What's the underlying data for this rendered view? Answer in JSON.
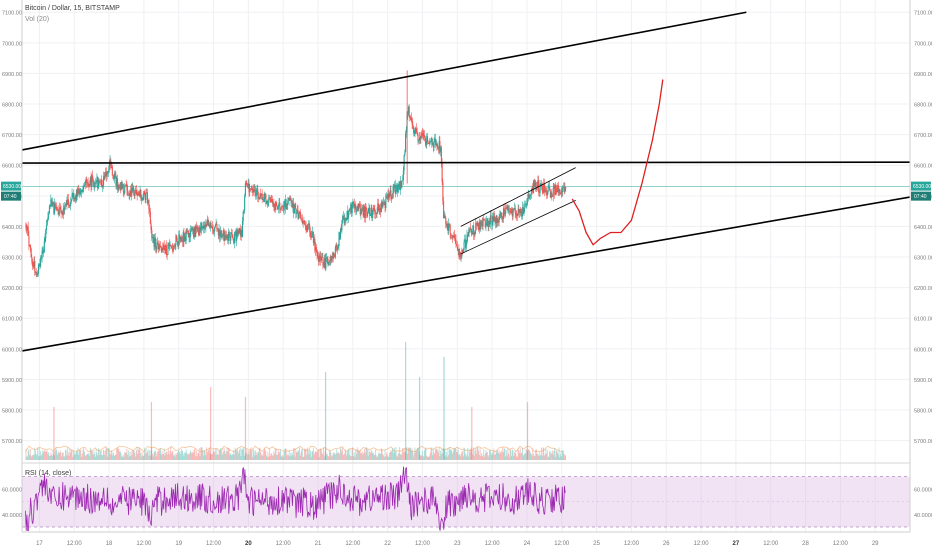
{
  "header": {
    "title": "Bitcoin / Dollar, 15, BITSTAMP",
    "volume_label": "Vol (20)"
  },
  "rsi_label": "RSI (14, close)",
  "current_price_badge": "6530.00",
  "countdown_badge": "07:40",
  "colors": {
    "up": "#26a69a",
    "down": "#ef5350",
    "trendline": "#000000",
    "projection": "#e02020",
    "rsi_line": "#9c27b0",
    "rsi_band": "#e1bee7",
    "price_line": "#26a69a"
  },
  "chart_data": {
    "type": "candlestick",
    "symbol": "Bitcoin / Dollar",
    "interval": "15",
    "exchange": "BITSTAMP",
    "current_price": 6530.0,
    "ylim": [
      5630,
      7140
    ],
    "y_ticks": [
      "7100.00",
      "7000.00",
      "6900.00",
      "6800.00",
      "6700.00",
      "6600.00",
      "6500.00",
      "6400.00",
      "6300.00",
      "6200.00",
      "6100.00",
      "6000.00",
      "5900.00",
      "5800.00",
      "5700.00"
    ],
    "x_ticks": [
      "17",
      "12:00",
      "18",
      "12:00",
      "19",
      "12:00",
      "20",
      "12:00",
      "21",
      "12:00",
      "22",
      "12:00",
      "23",
      "12:00",
      "24",
      "12:00",
      "25",
      "12:00",
      "26",
      "12:00",
      "27",
      "12:00",
      "28",
      "12:00",
      "29"
    ],
    "x_domain": [
      16.75,
      29.5
    ],
    "price_path": [
      [
        16.8,
        6410
      ],
      [
        16.88,
        6300
      ],
      [
        16.95,
        6240
      ],
      [
        17.05,
        6330
      ],
      [
        17.15,
        6470
      ],
      [
        17.3,
        6440
      ],
      [
        17.5,
        6500
      ],
      [
        17.7,
        6550
      ],
      [
        17.9,
        6540
      ],
      [
        18.0,
        6610
      ],
      [
        18.1,
        6540
      ],
      [
        18.25,
        6520
      ],
      [
        18.4,
        6510
      ],
      [
        18.55,
        6490
      ],
      [
        18.62,
        6350
      ],
      [
        18.8,
        6320
      ],
      [
        19.0,
        6360
      ],
      [
        19.2,
        6380
      ],
      [
        19.4,
        6410
      ],
      [
        19.6,
        6380
      ],
      [
        19.75,
        6360
      ],
      [
        19.9,
        6380
      ],
      [
        19.95,
        6540
      ],
      [
        20.1,
        6510
      ],
      [
        20.3,
        6480
      ],
      [
        20.45,
        6460
      ],
      [
        20.6,
        6480
      ],
      [
        20.75,
        6420
      ],
      [
        20.9,
        6380
      ],
      [
        21.0,
        6290
      ],
      [
        21.1,
        6280
      ],
      [
        21.25,
        6320
      ],
      [
        21.35,
        6420
      ],
      [
        21.5,
        6470
      ],
      [
        21.7,
        6440
      ],
      [
        21.9,
        6460
      ],
      [
        22.05,
        6510
      ],
      [
        22.2,
        6540
      ],
      [
        22.28,
        6780
      ],
      [
        22.4,
        6700
      ],
      [
        22.6,
        6680
      ],
      [
        22.75,
        6660
      ],
      [
        22.8,
        6420
      ],
      [
        22.95,
        6360
      ],
      [
        23.05,
        6300
      ],
      [
        23.15,
        6380
      ],
      [
        23.3,
        6400
      ],
      [
        23.5,
        6420
      ],
      [
        23.7,
        6450
      ],
      [
        23.9,
        6440
      ],
      [
        24.0,
        6480
      ],
      [
        24.1,
        6540
      ],
      [
        24.3,
        6510
      ],
      [
        24.5,
        6530
      ],
      [
        24.55,
        6520
      ]
    ],
    "volume_spikes": [
      {
        "x": 17.2,
        "v": 0.35
      },
      {
        "x": 18.6,
        "v": 0.4
      },
      {
        "x": 19.45,
        "v": 0.55
      },
      {
        "x": 19.95,
        "v": 0.45
      },
      {
        "x": 21.1,
        "v": 0.7
      },
      {
        "x": 22.25,
        "v": 1.0
      },
      {
        "x": 22.45,
        "v": 0.65
      },
      {
        "x": 22.8,
        "v": 0.85
      },
      {
        "x": 23.2,
        "v": 0.35
      },
      {
        "x": 24.0,
        "v": 0.4
      }
    ],
    "rsi": {
      "levels": [
        "60.0000",
        "40.0000"
      ],
      "ylim": [
        26,
        80
      ],
      "overbought": 70,
      "oversold": 30
    },
    "annotations": {
      "trendlines": [
        {
          "name": "upper-channel-line",
          "points": [
            [
              16.75,
              6650
            ],
            [
              27.15,
              7100
            ]
          ]
        },
        {
          "name": "lower-channel-line",
          "points": [
            [
              16.75,
              5993
            ],
            [
              29.5,
              6496
            ]
          ]
        },
        {
          "name": "horizontal-resistance-line",
          "points": [
            [
              16.75,
              6607
            ],
            [
              29.5,
              6610
            ]
          ]
        },
        {
          "name": "small-channel-upper",
          "points": [
            [
              23.05,
              6400
            ],
            [
              24.7,
              6592
            ]
          ]
        },
        {
          "name": "small-channel-lower",
          "points": [
            [
              23.05,
              6310
            ],
            [
              24.7,
              6485
            ]
          ]
        }
      ],
      "projection": [
        [
          24.65,
          6490
        ],
        [
          24.75,
          6450
        ],
        [
          24.85,
          6380
        ],
        [
          24.95,
          6340
        ],
        [
          25.05,
          6360
        ],
        [
          25.2,
          6380
        ],
        [
          25.35,
          6380
        ],
        [
          25.5,
          6420
        ],
        [
          25.65,
          6540
        ],
        [
          25.8,
          6680
        ],
        [
          25.9,
          6800
        ],
        [
          25.95,
          6880
        ]
      ]
    }
  }
}
